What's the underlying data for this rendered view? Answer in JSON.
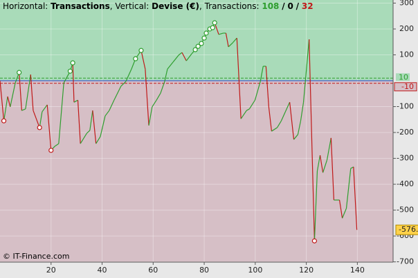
{
  "chart_data": {
    "type": "line",
    "title": {
      "horizontal_label": "Horizontal:",
      "horizontal": "Transactions",
      "vertical_label": ", Vertical:",
      "vertical": "Devise (€)",
      "count_label": ", Transactions:",
      "counts": [
        108,
        0,
        32
      ],
      "count_separator": "/"
    },
    "footer": "© IT-Finance.com",
    "xlim": [
      0,
      154
    ],
    "xticks": [
      20,
      40,
      60,
      80,
      100,
      120,
      140
    ],
    "ylim": [
      -701,
      312
    ],
    "yticks": [
      300,
      200,
      100,
      -100,
      -200,
      -300,
      -400,
      -500,
      -600,
      -700
    ],
    "zones": {
      "upper": 10,
      "lower": -10,
      "zero": 0,
      "upper_color": "#a9dbb9",
      "lower_color": "#d6bfc6"
    },
    "up_color": "#2e9e2e",
    "down_color": "#c01818",
    "x": [
      0,
      1.5,
      3,
      4,
      6,
      7.5,
      8.5,
      10,
      12,
      13,
      15.5,
      16.5,
      18.5,
      20,
      21.5,
      23,
      25,
      27.5,
      28.5,
      29,
      30.5,
      31.5,
      34,
      35.2,
      36.3,
      37.6,
      39.3,
      41.2,
      42.8,
      44.7,
      47.4,
      49.3,
      51.5,
      53.1,
      55.3,
      56.9,
      58.3,
      59.6,
      61.3,
      62.9,
      64.5,
      65.6,
      67.8,
      70,
      71.3,
      73,
      75.1,
      76.5,
      77.6,
      78.9,
      80,
      80.8,
      82.2,
      83.3,
      84.1,
      85.7,
      87.4,
      88.5,
      89.5,
      91.2,
      92.8,
      94.4,
      96.6,
      97.7,
      99.9,
      102,
      103.1,
      104.2,
      105.3,
      106.4,
      108.6,
      110.2,
      111.8,
      113.5,
      115.1,
      116.7,
      117.8,
      118.9,
      121.1,
      123.2,
      124.3,
      125.4,
      126.5,
      128.1,
      129.7,
      130.8,
      133,
      134.1,
      135.7,
      137.4,
      138.5,
      139.8
    ],
    "values": [
      0,
      -155,
      -61,
      -101,
      -8,
      32,
      -115,
      -109,
      24,
      -115,
      -181,
      -120,
      -93,
      -269,
      -253,
      -243,
      -8,
      37,
      69,
      -83,
      -75,
      -243,
      -203,
      -192,
      -115,
      -243,
      -216,
      -136,
      -115,
      -75,
      -21,
      -3,
      45,
      85,
      117,
      45,
      -173,
      -101,
      -75,
      -48,
      -3,
      45,
      72,
      99,
      109,
      77,
      104,
      120,
      133,
      144,
      165,
      184,
      200,
      205,
      224,
      179,
      184,
      184,
      131,
      147,
      165,
      -147,
      -115,
      -109,
      -75,
      -3,
      56,
      56,
      -101,
      -195,
      -181,
      -155,
      -120,
      -83,
      -227,
      -208,
      -155,
      -83,
      160,
      -619,
      -349,
      -288,
      -355,
      -307,
      -221,
      -461,
      -461,
      -531,
      -493,
      -339,
      -333,
      -576.3
    ],
    "value_labels": {
      "last": "-576.3"
    },
    "signals": [
      {
        "color": "#2e9e2e",
        "x": [
          7.5,
          27.5,
          28.5,
          53.1,
          55.3,
          76.5,
          77.6,
          78.9,
          80,
          80.8,
          82.2,
          83.3,
          84.1
        ],
        "values": [
          32,
          37,
          69,
          85,
          117,
          120,
          133,
          144,
          165,
          184,
          200,
          205,
          224
        ]
      },
      {
        "color": "#c01818",
        "x": [
          1.5,
          15.5,
          20,
          123.2
        ],
        "values": [
          -155,
          -181,
          -269,
          -619
        ]
      }
    ]
  }
}
